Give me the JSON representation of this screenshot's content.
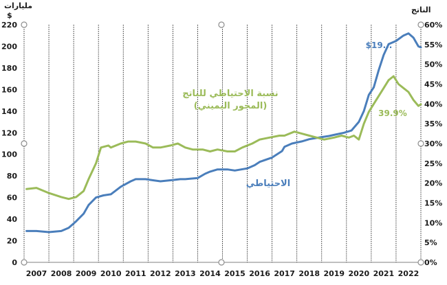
{
  "chart_data": {
    "type": "line",
    "left_axis_title": "مليارات",
    "left_axis_unit": "$",
    "right_axis_title": "الناتج",
    "x_years": [
      "2007",
      "2008",
      "2009",
      "2010",
      "2011",
      "2012",
      "2013",
      "2014",
      "2015",
      "2016",
      "2017",
      "2018",
      "2019",
      "2020",
      "2021",
      "2022"
    ],
    "y_left": {
      "min": 0,
      "max": 220,
      "step": 20
    },
    "y_right": {
      "min": 0,
      "max": 60,
      "step": 5,
      "suffix": "%"
    },
    "grid": "vertical",
    "series": [
      {
        "name": "الاحتياطي",
        "axis": "left",
        "color": "#4a7ebb",
        "end_label": "$19...",
        "points": [
          [
            2006.6,
            29
          ],
          [
            2007.0,
            29
          ],
          [
            2007.5,
            28
          ],
          [
            2008.0,
            29
          ],
          [
            2008.3,
            32
          ],
          [
            2008.6,
            38
          ],
          [
            2008.9,
            45
          ],
          [
            2009.1,
            53
          ],
          [
            2009.4,
            60
          ],
          [
            2009.7,
            62
          ],
          [
            2010.0,
            63
          ],
          [
            2010.4,
            70
          ],
          [
            2010.8,
            75
          ],
          [
            2011.0,
            77
          ],
          [
            2011.4,
            77
          ],
          [
            2011.7,
            76
          ],
          [
            2012.0,
            75
          ],
          [
            2012.4,
            76
          ],
          [
            2012.8,
            77
          ],
          [
            2013.0,
            77
          ],
          [
            2013.5,
            78
          ],
          [
            2013.8,
            82
          ],
          [
            2014.0,
            84
          ],
          [
            2014.3,
            86
          ],
          [
            2014.7,
            86
          ],
          [
            2015.0,
            85
          ],
          [
            2015.5,
            87
          ],
          [
            2015.8,
            90
          ],
          [
            2016.0,
            93
          ],
          [
            2016.5,
            97
          ],
          [
            2016.9,
            103
          ],
          [
            2017.0,
            107
          ],
          [
            2017.3,
            110
          ],
          [
            2017.7,
            112
          ],
          [
            2018.0,
            114
          ],
          [
            2018.5,
            116
          ],
          [
            2018.8,
            117
          ],
          [
            2019.0,
            118
          ],
          [
            2019.4,
            120
          ],
          [
            2019.7,
            122
          ],
          [
            2020.0,
            130
          ],
          [
            2020.2,
            140
          ],
          [
            2020.4,
            155
          ],
          [
            2020.6,
            162
          ],
          [
            2020.8,
            178
          ],
          [
            2021.0,
            192
          ],
          [
            2021.2,
            202
          ],
          [
            2021.5,
            205
          ],
          [
            2021.8,
            210
          ],
          [
            2022.0,
            212
          ],
          [
            2022.2,
            208
          ],
          [
            2022.4,
            200
          ],
          [
            2022.5,
            199
          ]
        ]
      },
      {
        "name": "نسبة الاحتياطي للناتج",
        "name_line2": "(المحور اليميني)",
        "axis": "right",
        "color": "#9bbb59",
        "end_label": "39.9%",
        "points": [
          [
            2006.6,
            18.5
          ],
          [
            2007.0,
            18.8
          ],
          [
            2007.5,
            17.5
          ],
          [
            2008.0,
            16.5
          ],
          [
            2008.3,
            16
          ],
          [
            2008.6,
            16.5
          ],
          [
            2008.9,
            18
          ],
          [
            2009.1,
            21
          ],
          [
            2009.4,
            25
          ],
          [
            2009.6,
            29
          ],
          [
            2009.9,
            29.5
          ],
          [
            2010.0,
            29
          ],
          [
            2010.4,
            30
          ],
          [
            2010.7,
            30.5
          ],
          [
            2011.0,
            30.5
          ],
          [
            2011.4,
            30
          ],
          [
            2011.7,
            29
          ],
          [
            2012.0,
            29
          ],
          [
            2012.4,
            29.5
          ],
          [
            2012.7,
            30
          ],
          [
            2013.0,
            29
          ],
          [
            2013.3,
            28.5
          ],
          [
            2013.7,
            28.5
          ],
          [
            2014.0,
            28
          ],
          [
            2014.3,
            28.5
          ],
          [
            2014.7,
            28
          ],
          [
            2015.0,
            28
          ],
          [
            2015.3,
            29
          ],
          [
            2015.7,
            30
          ],
          [
            2016.0,
            31
          ],
          [
            2016.4,
            31.5
          ],
          [
            2016.8,
            32
          ],
          [
            2017.0,
            32
          ],
          [
            2017.4,
            33
          ],
          [
            2017.7,
            32.5
          ],
          [
            2018.0,
            32
          ],
          [
            2018.3,
            31.5
          ],
          [
            2018.6,
            31
          ],
          [
            2019.0,
            31.5
          ],
          [
            2019.3,
            32
          ],
          [
            2019.6,
            31.5
          ],
          [
            2019.8,
            32
          ],
          [
            2020.0,
            31
          ],
          [
            2020.2,
            35
          ],
          [
            2020.4,
            38
          ],
          [
            2020.6,
            40
          ],
          [
            2020.8,
            42
          ],
          [
            2021.0,
            44
          ],
          [
            2021.2,
            46
          ],
          [
            2021.4,
            47
          ],
          [
            2021.6,
            45
          ],
          [
            2021.8,
            44
          ],
          [
            2022.0,
            43
          ],
          [
            2022.2,
            41
          ],
          [
            2022.4,
            39.5
          ],
          [
            2022.5,
            39.9
          ]
        ]
      }
    ]
  }
}
